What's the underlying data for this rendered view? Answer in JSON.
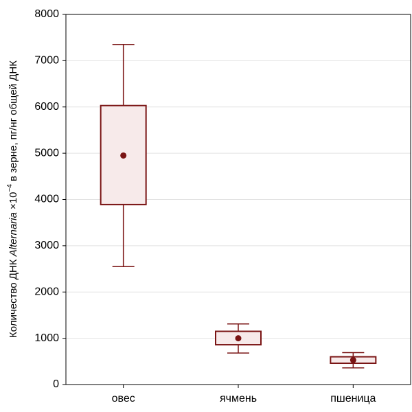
{
  "chart_data": {
    "type": "box",
    "y_label_parts": [
      "Количество ДНК ",
      "Alternaria",
      " ×10",
      "−4",
      " в зерне, пг/нг общей ДНК"
    ],
    "categories": [
      "овес",
      "ячмень",
      "пшеница"
    ],
    "boxes": [
      {
        "whisker_low": 2550,
        "q1": 3890,
        "mean": 4950,
        "q3": 6030,
        "whisker_high": 7350
      },
      {
        "whisker_low": 680,
        "q1": 860,
        "mean": 1000,
        "q3": 1150,
        "whisker_high": 1310
      },
      {
        "whisker_low": 360,
        "q1": 460,
        "mean": 530,
        "q3": 600,
        "whisker_high": 690
      }
    ],
    "color": "#7a1414",
    "box_fill": "#f7eaea",
    "ylim": [
      0,
      8000
    ],
    "yticks": [
      0,
      1000,
      2000,
      3000,
      4000,
      5000,
      6000,
      7000,
      8000
    ],
    "grid": true
  }
}
